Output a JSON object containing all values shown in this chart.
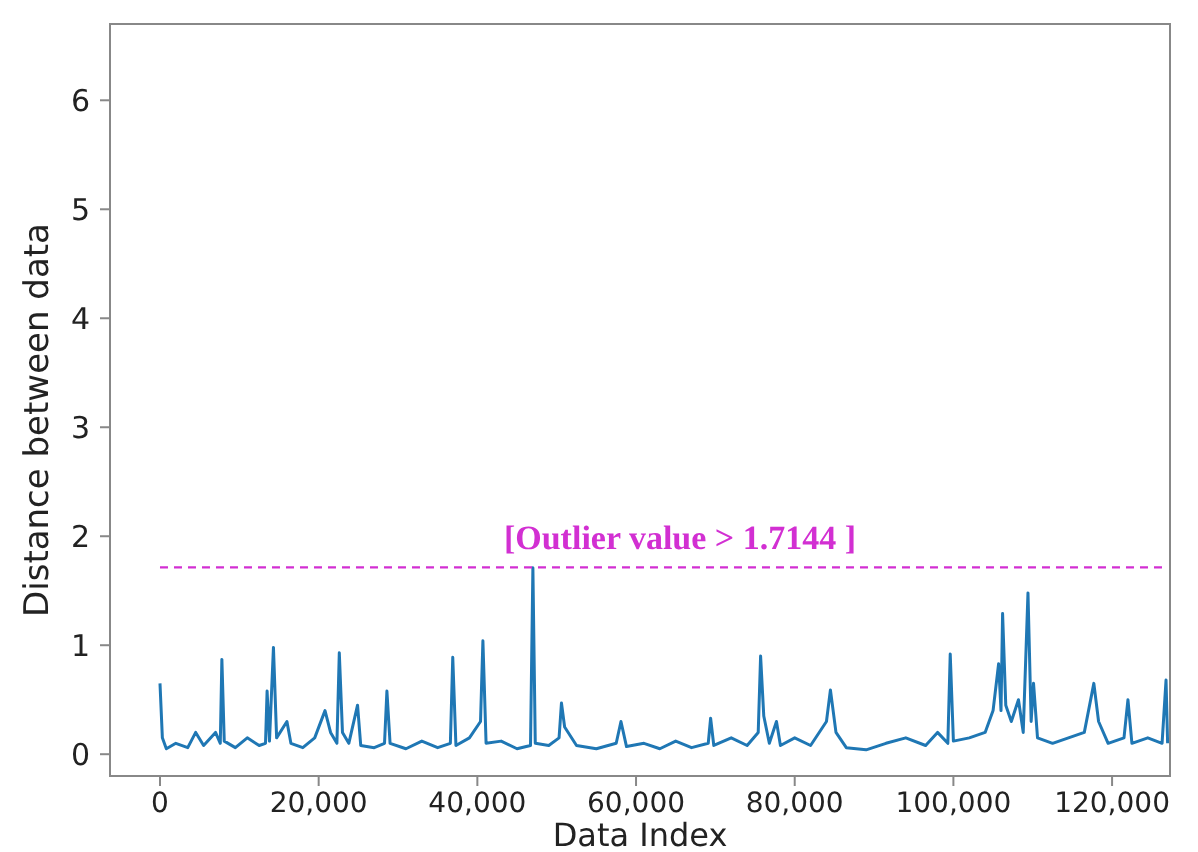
{
  "chart_data": {
    "type": "line",
    "xlabel": "Data Index",
    "ylabel": "Distance between data",
    "xlim": [
      -6300,
      127300
    ],
    "xticks": [
      {
        "value": 0,
        "label": "0"
      },
      {
        "value": 20000,
        "label": "20,000"
      },
      {
        "value": 40000,
        "label": "40,000"
      },
      {
        "value": 60000,
        "label": "60,000"
      },
      {
        "value": 80000,
        "label": "80,000"
      },
      {
        "value": 100000,
        "label": "100,000"
      },
      {
        "value": 120000,
        "label": "120,000"
      }
    ],
    "ylim": [
      -0.2,
      6.7
    ],
    "yticks": [
      0,
      1,
      2,
      3,
      4,
      5,
      6
    ],
    "grid": false,
    "marker": "none",
    "line_style": "solid",
    "series": [
      {
        "color": "#1f77b4",
        "x": [
          0,
          300,
          800,
          2000,
          3500,
          4500,
          5500,
          7000,
          7600,
          7800,
          8100,
          9500,
          11000,
          12500,
          13300,
          13500,
          13800,
          14300,
          14700,
          16000,
          16500,
          18000,
          19500,
          20800,
          21500,
          22300,
          22600,
          23000,
          23800,
          24900,
          25300,
          27000,
          28300,
          28600,
          29000,
          31000,
          33000,
          35000,
          36600,
          36900,
          37300,
          39000,
          40400,
          40700,
          41100,
          43000,
          45000,
          46700,
          47000,
          47300,
          49000,
          50300,
          50600,
          51000,
          52500,
          55000,
          57500,
          58100,
          58800,
          61000,
          63000,
          65000,
          67000,
          69100,
          69400,
          69800,
          72000,
          74000,
          75400,
          75700,
          76100,
          76800,
          77700,
          78200,
          80000,
          82000,
          84000,
          84500,
          85200,
          86500,
          89000,
          91500,
          94000,
          96500,
          98000,
          99300,
          99600,
          100000,
          102000,
          104000,
          105000,
          105700,
          106000,
          106200,
          106600,
          107300,
          108200,
          108800,
          109400,
          109800,
          110100,
          110600,
          112500,
          114500,
          116500,
          117700,
          118300,
          119500,
          121500,
          122000,
          122500,
          124500,
          126300,
          126800,
          127000
        ],
        "values": [
          0.65,
          0.15,
          0.05,
          0.1,
          0.06,
          0.2,
          0.08,
          0.2,
          0.1,
          0.87,
          0.12,
          0.06,
          0.15,
          0.08,
          0.1,
          0.58,
          0.12,
          0.98,
          0.15,
          0.3,
          0.1,
          0.06,
          0.15,
          0.4,
          0.2,
          0.1,
          0.93,
          0.2,
          0.1,
          0.45,
          0.08,
          0.06,
          0.1,
          0.58,
          0.1,
          0.05,
          0.12,
          0.06,
          0.1,
          0.89,
          0.08,
          0.15,
          0.3,
          1.04,
          0.1,
          0.12,
          0.05,
          0.08,
          1.71,
          0.1,
          0.08,
          0.15,
          0.47,
          0.25,
          0.08,
          0.05,
          0.1,
          0.3,
          0.07,
          0.1,
          0.05,
          0.12,
          0.06,
          0.1,
          0.33,
          0.08,
          0.15,
          0.08,
          0.2,
          0.9,
          0.35,
          0.1,
          0.3,
          0.08,
          0.15,
          0.08,
          0.3,
          0.59,
          0.2,
          0.06,
          0.04,
          0.1,
          0.15,
          0.08,
          0.2,
          0.1,
          0.92,
          0.12,
          0.15,
          0.2,
          0.4,
          0.83,
          0.4,
          1.29,
          0.45,
          0.3,
          0.5,
          0.2,
          1.48,
          0.3,
          0.65,
          0.15,
          0.1,
          0.15,
          0.2,
          0.65,
          0.3,
          0.1,
          0.15,
          0.5,
          0.1,
          0.15,
          0.1,
          0.68,
          0.1
        ]
      }
    ],
    "ref_lines": [
      {
        "axis": "y",
        "value": 1.7144,
        "label": "[Outlier value > 1.7144 ]",
        "color": "#d22fd2",
        "line_style": "dashed"
      }
    ]
  }
}
